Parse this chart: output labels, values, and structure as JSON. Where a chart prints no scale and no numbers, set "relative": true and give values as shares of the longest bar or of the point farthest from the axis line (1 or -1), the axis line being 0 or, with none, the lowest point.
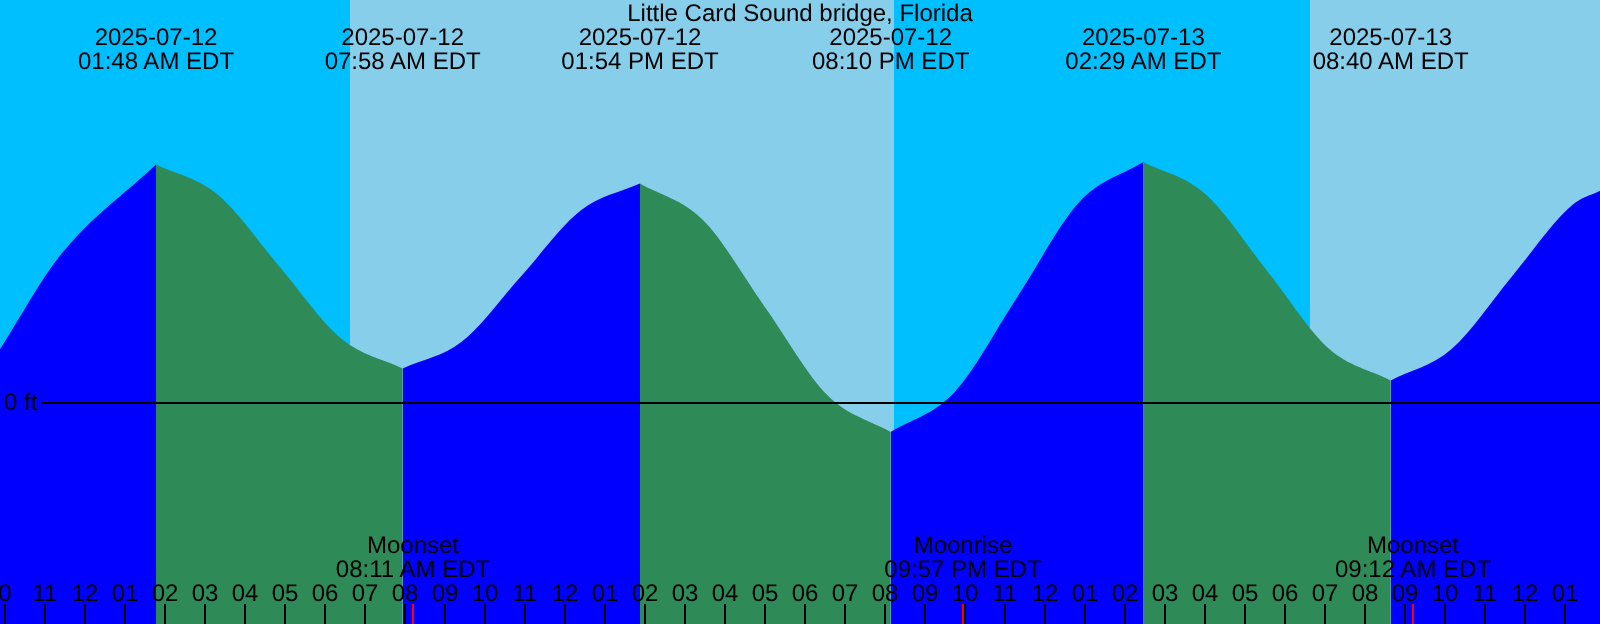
{
  "chart_data": {
    "type": "area",
    "title": "Little Card Sound bridge, Florida",
    "relative": true,
    "xlim": [
      "2025-07-11T21:54",
      "2025-07-13T13:54"
    ],
    "xticks": [
      {
        "value": "2025-07-11T22:00",
        "label": "0"
      },
      {
        "value": "2025-07-11T23:00",
        "label": "11"
      },
      {
        "value": "2025-07-12T00:00",
        "label": "12"
      },
      {
        "value": "2025-07-12T01:00",
        "label": "01"
      },
      {
        "value": "2025-07-12T02:00",
        "label": "02"
      },
      {
        "value": "2025-07-12T03:00",
        "label": "03"
      },
      {
        "value": "2025-07-12T04:00",
        "label": "04"
      },
      {
        "value": "2025-07-12T05:00",
        "label": "05"
      },
      {
        "value": "2025-07-12T06:00",
        "label": "06"
      },
      {
        "value": "2025-07-12T07:00",
        "label": "07"
      },
      {
        "value": "2025-07-12T08:00",
        "label": "08"
      },
      {
        "value": "2025-07-12T09:00",
        "label": "09"
      },
      {
        "value": "2025-07-12T10:00",
        "label": "10"
      },
      {
        "value": "2025-07-12T11:00",
        "label": "11"
      },
      {
        "value": "2025-07-12T12:00",
        "label": "12"
      },
      {
        "value": "2025-07-12T13:00",
        "label": "01"
      },
      {
        "value": "2025-07-12T14:00",
        "label": "02"
      },
      {
        "value": "2025-07-12T15:00",
        "label": "03"
      },
      {
        "value": "2025-07-12T16:00",
        "label": "04"
      },
      {
        "value": "2025-07-12T17:00",
        "label": "05"
      },
      {
        "value": "2025-07-12T18:00",
        "label": "06"
      },
      {
        "value": "2025-07-12T19:00",
        "label": "07"
      },
      {
        "value": "2025-07-12T20:00",
        "label": "08"
      },
      {
        "value": "2025-07-12T21:00",
        "label": "09"
      },
      {
        "value": "2025-07-12T22:00",
        "label": "10"
      },
      {
        "value": "2025-07-12T23:00",
        "label": "11"
      },
      {
        "value": "2025-07-13T00:00",
        "label": "12"
      },
      {
        "value": "2025-07-13T01:00",
        "label": "01"
      },
      {
        "value": "2025-07-13T02:00",
        "label": "02"
      },
      {
        "value": "2025-07-13T03:00",
        "label": "03"
      },
      {
        "value": "2025-07-13T04:00",
        "label": "04"
      },
      {
        "value": "2025-07-13T05:00",
        "label": "05"
      },
      {
        "value": "2025-07-13T06:00",
        "label": "06"
      },
      {
        "value": "2025-07-13T07:00",
        "label": "07"
      },
      {
        "value": "2025-07-13T08:00",
        "label": "08"
      },
      {
        "value": "2025-07-13T09:00",
        "label": "09"
      },
      {
        "value": "2025-07-13T10:00",
        "label": "10"
      },
      {
        "value": "2025-07-13T11:00",
        "label": "11"
      },
      {
        "value": "2025-07-13T12:00",
        "label": "12"
      },
      {
        "value": "2025-07-13T13:00",
        "label": "01"
      }
    ],
    "series": [
      {
        "color": "#0000ff",
        "x": [
          "2025-07-11T21:54",
          "2025-07-11T23:24",
          "2025-07-12T01:48",
          "2025-07-12T04:53",
          "2025-07-12T07:58",
          "2025-07-12T09:27",
          "2025-07-12T10:56",
          "2025-07-12T12:25",
          "2025-07-12T13:54",
          "2025-07-12T17:02",
          "2025-07-12T20:10",
          "2025-07-12T21:45",
          "2025-07-12T23:20",
          "2025-07-13T00:54",
          "2025-07-13T02:29",
          "2025-07-13T05:35",
          "2025-07-13T08:40",
          "2025-07-13T10:11",
          "2025-07-13T11:41",
          "2025-07-13T13:12",
          "2025-07-13T13:54"
        ],
        "values": [
          0.22,
          0.61,
          0.99,
          null,
          0.14,
          0.252,
          0.525,
          0.798,
          0.91,
          null,
          -0.125,
          0.039,
          0.438,
          0.836,
          1.0,
          null,
          0.09,
          0.22,
          0.52,
          0.82,
          0.88
        ]
      },
      {
        "color": "#2e8b57",
        "x": [
          "2025-07-12T01:48",
          "2025-07-12T03:20",
          "2025-07-12T04:53",
          "2025-07-12T06:26",
          "2025-07-12T07:58",
          "2025-07-12T10:56",
          "2025-07-12T13:54",
          "2025-07-12T15:28",
          "2025-07-12T17:02",
          "2025-07-12T18:36",
          "2025-07-12T20:10",
          "2025-07-12T23:20",
          "2025-07-13T02:29",
          "2025-07-13T04:02",
          "2025-07-13T05:35",
          "2025-07-13T07:07",
          "2025-07-13T08:40"
        ],
        "values": [
          0.99,
          0.866,
          0.565,
          0.264,
          0.14,
          null,
          0.91,
          0.759,
          0.393,
          0.026,
          -0.125,
          null,
          1.0,
          0.867,
          0.545,
          0.223,
          0.09
        ]
      }
    ],
    "bands": [
      {
        "axis": "x",
        "from": "2025-07-12T06:39",
        "to": "2025-07-12T20:15",
        "color": "#87ceeb"
      },
      {
        "axis": "x",
        "from": "2025-07-13T06:39",
        "to": "2025-07-13T13:54",
        "color": "#87ceeb"
      }
    ],
    "ref_lines": [
      {
        "axis": "y",
        "value": 0,
        "label": "0 ft",
        "color": "#000000"
      },
      {
        "axis": "x",
        "value": "2025-07-12T08:11",
        "label": "Moonset\n08:11 AM EDT",
        "color": "#ff0000"
      },
      {
        "axis": "x",
        "value": "2025-07-12T21:57",
        "label": "Moonrise\n09:57 PM EDT",
        "color": "#ff0000"
      },
      {
        "axis": "x",
        "value": "2025-07-13T09:12",
        "label": "Moonset\n09:12 AM EDT",
        "color": "#ff0000"
      }
    ],
    "annotations": [
      "2025-07-12\n01:48 AM EDT",
      "2025-07-12\n07:58 AM EDT",
      "2025-07-12\n01:54 PM EDT",
      "2025-07-12\n08:10 PM EDT",
      "2025-07-13\n02:29 AM EDT",
      "2025-07-13\n08:40 AM EDT"
    ]
  }
}
